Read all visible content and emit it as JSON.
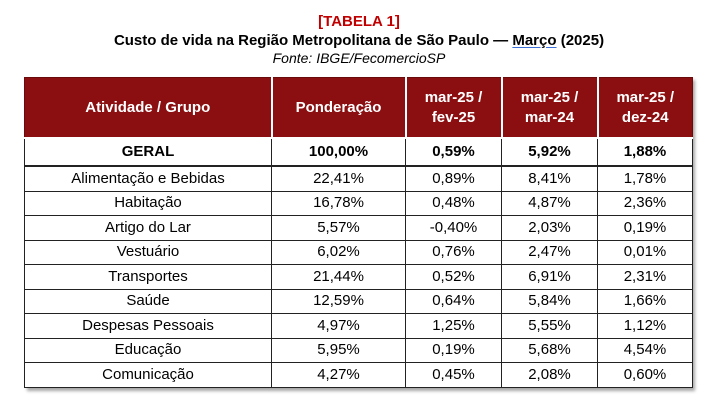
{
  "header": {
    "tag": "[TABELA 1]",
    "title_prefix": "Custo de vida na Região Metropolitana de São Paulo — ",
    "title_month": "Março",
    "title_suffix": " (2025)",
    "source": "Fonte: IBGE/FecomercioSP"
  },
  "table": {
    "headers": [
      "Atividade / Grupo",
      "Ponderação",
      "mar-25 /\nfev-25",
      "mar-25 /\nmar-24",
      "mar-25 /\ndez-24"
    ],
    "rows": [
      [
        "GERAL",
        "100,00%",
        "0,59%",
        "5,92%",
        "1,88%"
      ],
      [
        "Alimentação e Bebidas",
        "22,41%",
        "0,89%",
        "8,41%",
        "1,78%"
      ],
      [
        "Habitação",
        "16,78%",
        "0,48%",
        "4,87%",
        "2,36%"
      ],
      [
        "Artigo do Lar",
        "5,57%",
        "-0,40%",
        "2,03%",
        "0,19%"
      ],
      [
        "Vestuário",
        "6,02%",
        "0,76%",
        "2,47%",
        "0,01%"
      ],
      [
        "Transportes",
        "21,44%",
        "0,52%",
        "6,91%",
        "2,31%"
      ],
      [
        "Saúde",
        "12,59%",
        "0,64%",
        "5,84%",
        "1,66%"
      ],
      [
        "Despesas Pessoais",
        "4,97%",
        "1,25%",
        "5,55%",
        "1,12%"
      ],
      [
        "Educação",
        "5,95%",
        "0,19%",
        "5,68%",
        "4,54%"
      ],
      [
        "Comunicação",
        "4,27%",
        "0,45%",
        "2,08%",
        "0,60%"
      ]
    ]
  },
  "colors": {
    "header_bg": "#8b0e10",
    "tag": "#c00000"
  }
}
